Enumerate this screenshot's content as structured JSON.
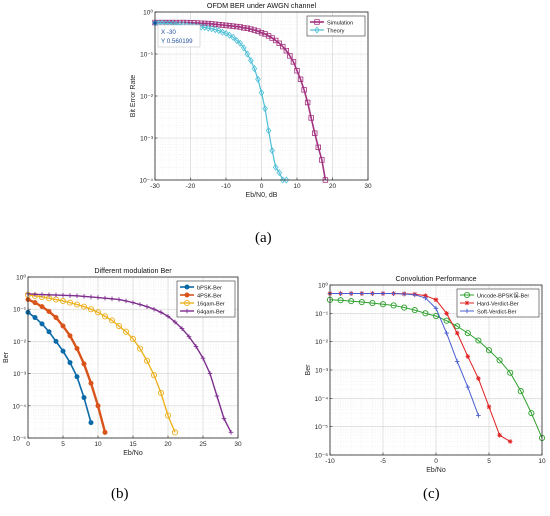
{
  "captions": {
    "a": "(a)",
    "b": "(b)",
    "c": "(c)"
  },
  "chart_data": [
    {
      "id": "a",
      "type": "line",
      "title": "OFDM BER under AWGN channel",
      "xlabel": "Eb/N0, dB",
      "ylabel": "Bit Error Rate",
      "xscale": "linear",
      "yscale": "log",
      "xlim": [
        -30,
        30
      ],
      "ylim": [
        0.0001,
        1
      ],
      "xticks": [
        -30,
        -20,
        -10,
        0,
        10,
        20,
        30
      ],
      "xtick_labels": [
        "-30",
        "-20",
        "-10",
        "0",
        "10",
        "20",
        "30"
      ],
      "yticks": [
        0.0001,
        0.001,
        0.01,
        0.1,
        1
      ],
      "ytick_labels": [
        "10⁻⁴",
        "10⁻³",
        "10⁻²",
        "10⁻¹",
        "10⁰"
      ],
      "grid": true,
      "legend": "top-right",
      "datatip": {
        "x": "X -30",
        "y": "Y 0.560199"
      },
      "series": [
        {
          "name": "Simulation",
          "color": "#a2307f",
          "marker": "square",
          "lw": 1.6,
          "x": [
            -30,
            -29,
            -28,
            -27,
            -26,
            -25,
            -24,
            -23,
            -22,
            -21,
            -20,
            -19,
            -18,
            -17,
            -16,
            -15,
            -14,
            -13,
            -12,
            -11,
            -10,
            -9,
            -8,
            -7,
            -6,
            -5,
            -4,
            -3,
            -2,
            -1,
            0,
            1,
            2,
            3,
            4,
            5,
            6,
            7,
            8,
            9,
            10,
            11,
            12,
            13,
            14,
            15,
            16,
            17,
            18
          ],
          "y": [
            0.56,
            0.56,
            0.56,
            0.56,
            0.56,
            0.56,
            0.56,
            0.56,
            0.56,
            0.56,
            0.555,
            0.55,
            0.545,
            0.54,
            0.535,
            0.53,
            0.52,
            0.51,
            0.5,
            0.49,
            0.48,
            0.47,
            0.46,
            0.45,
            0.44,
            0.42,
            0.41,
            0.39,
            0.37,
            0.35,
            0.32,
            0.3,
            0.27,
            0.24,
            0.21,
            0.18,
            0.15,
            0.12,
            0.09,
            0.065,
            0.04,
            0.025,
            0.014,
            0.007,
            0.003,
            0.0013,
            0.0006,
            0.0003,
            0.0001
          ]
        },
        {
          "name": "Theory",
          "color": "#4dbfd6",
          "marker": "diamond",
          "lw": 1.2,
          "x": [
            -30,
            -29,
            -28,
            -27,
            -26,
            -25,
            -24,
            -23,
            -22,
            -21,
            -20,
            -19,
            -18,
            -17,
            -16,
            -15,
            -14,
            -13,
            -12,
            -11,
            -10,
            -9,
            -8,
            -7,
            -6,
            -5,
            -4,
            -3,
            -2,
            -1,
            0,
            1,
            2,
            3,
            4,
            5,
            6,
            7
          ],
          "y": [
            0.55,
            0.54,
            0.54,
            0.53,
            0.53,
            0.52,
            0.51,
            0.5,
            0.49,
            0.48,
            0.47,
            0.46,
            0.45,
            0.44,
            0.43,
            0.41,
            0.4,
            0.38,
            0.36,
            0.33,
            0.31,
            0.28,
            0.25,
            0.21,
            0.18,
            0.14,
            0.1,
            0.07,
            0.045,
            0.025,
            0.012,
            0.005,
            0.0015,
            0.0005,
            0.0002,
            0.00015,
            0.0001,
            0.0001
          ]
        }
      ]
    },
    {
      "id": "b",
      "type": "line",
      "title": "Different modulation Ber",
      "xlabel": "Eb/No",
      "ylabel": "Ber",
      "xscale": "linear",
      "yscale": "log",
      "xlim": [
        0,
        30
      ],
      "ylim": [
        1e-05,
        1
      ],
      "xticks": [
        0,
        5,
        10,
        15,
        20,
        25,
        30
      ],
      "xtick_labels": [
        "0",
        "5",
        "10",
        "15",
        "20",
        "25",
        "30"
      ],
      "yticks": [
        1e-05,
        0.0001,
        0.001,
        0.01,
        0.1,
        1
      ],
      "ytick_labels": [
        "10⁻⁵",
        "10⁻⁴",
        "10⁻³",
        "10⁻²",
        "10⁻¹",
        "10⁰"
      ],
      "grid": true,
      "legend": "top-right",
      "series": [
        {
          "name": "bPSK-Ber",
          "color": "#0b6aa8",
          "marker": "dot",
          "lw": 1.6,
          "x": [
            0,
            1,
            2,
            3,
            4,
            5,
            6,
            7,
            8,
            9
          ],
          "y": [
            0.08,
            0.055,
            0.035,
            0.02,
            0.01,
            0.005,
            0.0022,
            0.0008,
            0.00018,
            3e-05
          ]
        },
        {
          "name": "4PSK-Ber",
          "color": "#d9541a",
          "marker": "dot",
          "lw": 2.4,
          "x": [
            0,
            1,
            2,
            3,
            4,
            5,
            6,
            7,
            8,
            9,
            10,
            11
          ],
          "y": [
            0.2,
            0.16,
            0.12,
            0.085,
            0.055,
            0.03,
            0.015,
            0.006,
            0.002,
            0.0005,
            0.0001,
            1.5e-05
          ]
        },
        {
          "name": "16qam-Ber",
          "color": "#edb120",
          "marker": "circle",
          "lw": 1.4,
          "x": [
            0,
            1,
            2,
            3,
            4,
            5,
            6,
            7,
            8,
            9,
            10,
            11,
            12,
            13,
            14,
            15,
            16,
            17,
            18,
            19,
            20,
            21
          ],
          "y": [
            0.28,
            0.26,
            0.24,
            0.22,
            0.2,
            0.18,
            0.16,
            0.14,
            0.12,
            0.1,
            0.08,
            0.06,
            0.045,
            0.03,
            0.02,
            0.012,
            0.006,
            0.0025,
            0.0009,
            0.00025,
            5e-05,
            1.5e-05
          ]
        },
        {
          "name": "64qam-Ber",
          "color": "#7e2f8e",
          "marker": "plus",
          "lw": 1.4,
          "x": [
            0,
            1,
            2,
            3,
            4,
            5,
            6,
            7,
            8,
            9,
            10,
            11,
            12,
            13,
            14,
            15,
            16,
            17,
            18,
            19,
            20,
            21,
            22,
            23,
            24,
            25,
            26,
            27,
            28,
            29
          ],
          "y": [
            0.3,
            0.29,
            0.285,
            0.28,
            0.275,
            0.27,
            0.265,
            0.26,
            0.25,
            0.24,
            0.23,
            0.22,
            0.21,
            0.2,
            0.18,
            0.16,
            0.14,
            0.12,
            0.1,
            0.08,
            0.06,
            0.04,
            0.025,
            0.014,
            0.007,
            0.003,
            0.001,
            0.0002,
            4e-05,
            1.5e-05
          ]
        }
      ]
    },
    {
      "id": "c",
      "type": "line",
      "title": "Convolution Performance",
      "xlabel": "Eb/No",
      "ylabel": "Ber",
      "xscale": "linear",
      "yscale": "log",
      "xlim": [
        -10,
        10
      ],
      "ylim": [
        1e-06,
        1
      ],
      "xticks": [
        -10,
        -5,
        0,
        5,
        10
      ],
      "xtick_labels": [
        "-10",
        "-5",
        "0",
        "5",
        "10"
      ],
      "yticks": [
        1e-06,
        1e-05,
        0.0001,
        0.001,
        0.01,
        0.1,
        1
      ],
      "ytick_labels": [
        "10⁻⁶",
        "10⁻⁵",
        "10⁻⁴",
        "10⁻³",
        "10⁻²",
        "10⁻¹",
        "10⁰"
      ],
      "grid": true,
      "legend": "top-right",
      "series": [
        {
          "name": "Uncode-BPSK误-Ber",
          "color": "#2ca02c",
          "marker": "circle",
          "lw": 1,
          "x": [
            -10,
            -9,
            -8,
            -7,
            -6,
            -5,
            -4,
            -3,
            -2,
            -1,
            0,
            1,
            2,
            3,
            4,
            5,
            6,
            7,
            8,
            9,
            10
          ],
          "y": [
            0.3,
            0.29,
            0.27,
            0.25,
            0.23,
            0.21,
            0.19,
            0.16,
            0.13,
            0.1,
            0.08,
            0.055,
            0.035,
            0.02,
            0.011,
            0.005,
            0.0022,
            0.0008,
            0.00018,
            3e-05,
            4e-06
          ]
        },
        {
          "name": "Hard-Verdict-Ber",
          "color": "#e02020",
          "marker": "star",
          "lw": 1,
          "x": [
            -10,
            -9,
            -8,
            -7,
            -6,
            -5,
            -4,
            -3,
            -2,
            -1,
            0,
            1,
            2,
            3,
            4,
            5,
            6,
            7
          ],
          "y": [
            0.5,
            0.5,
            0.5,
            0.5,
            0.5,
            0.5,
            0.5,
            0.49,
            0.47,
            0.42,
            0.3,
            0.1,
            0.02,
            0.003,
            0.0005,
            5e-05,
            5e-06,
            3e-06
          ]
        },
        {
          "name": "Soft-Verdict-Ber",
          "color": "#4a5dd0",
          "marker": "plus",
          "lw": 1,
          "x": [
            -10,
            -9,
            -8,
            -7,
            -6,
            -5,
            -4,
            -3,
            -2,
            -1,
            0,
            1,
            2,
            3,
            4
          ],
          "y": [
            0.5,
            0.5,
            0.5,
            0.5,
            0.5,
            0.5,
            0.5,
            0.48,
            0.45,
            0.35,
            0.15,
            0.02,
            0.002,
            0.00025,
            2.5e-05
          ]
        }
      ]
    }
  ]
}
